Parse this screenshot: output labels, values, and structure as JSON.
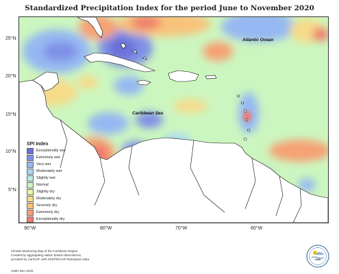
{
  "title": "Standardized Precipitation Index for the period June to November 2020",
  "map_labels": {
    "atlantic": "Atlantic Ocean",
    "caribbean": "Caribbean Sea"
  },
  "y_ticks": [
    "25°N",
    "20°N",
    "15°N",
    "10°N",
    "5°N"
  ],
  "x_ticks": [
    "90°W",
    "80°W",
    "70°W",
    "60°W"
  ],
  "legend": {
    "title": "SPI Index",
    "items": [
      {
        "label": "Exceptionally wet",
        "color": "#6a6fd8"
      },
      {
        "label": "Extremely wet",
        "color": "#7f90e6"
      },
      {
        "label": "Very wet",
        "color": "#95b8f2"
      },
      {
        "label": "Moderately wet",
        "color": "#a9d6f5"
      },
      {
        "label": "Slightly wet",
        "color": "#b7ecde"
      },
      {
        "label": "Normal",
        "color": "#ccf6bf"
      },
      {
        "label": "Slightly dry",
        "color": "#e7f3a4"
      },
      {
        "label": "Moderately dry",
        "color": "#f6dc8a"
      },
      {
        "label": "Severely dry",
        "color": "#f9c27a"
      },
      {
        "label": "Extremely dry",
        "color": "#f6a173"
      },
      {
        "label": "Exceptionally dry",
        "color": "#ef7b6c"
      }
    ]
  },
  "credits": {
    "line1": "Climate Monitoring Map of the Caribbean Region.",
    "line2": "Created by aggregating station based observations,",
    "line3": "provided by CariCOF, with NCEP/NCAR Reanalysis Data.",
    "date": "CIMH Dec-2020"
  },
  "logo_text": "CIMH"
}
